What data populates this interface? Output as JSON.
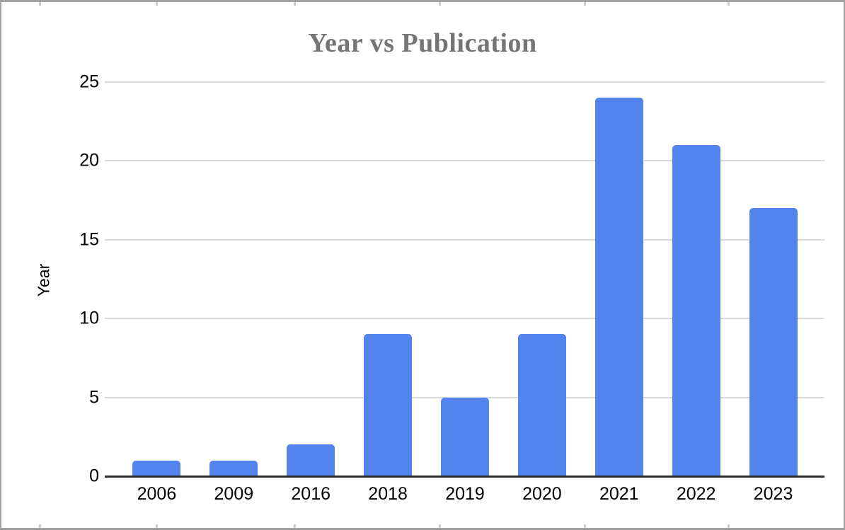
{
  "chart_data": {
    "type": "bar",
    "title": "Year vs Publication",
    "categories": [
      "2006",
      "2009",
      "2016",
      "2018",
      "2019",
      "2020",
      "2021",
      "2022",
      "2023"
    ],
    "values": [
      1,
      1,
      2,
      9,
      5,
      9,
      24,
      21,
      17
    ],
    "xlabel": "",
    "ylabel": "Year",
    "ylim": [
      0,
      25
    ],
    "ytick_step": 5,
    "ytick_labels": [
      "0",
      "5",
      "10",
      "15",
      "20",
      "25"
    ],
    "grid": true,
    "legend_position": "none",
    "bar_color": "#5383ec"
  },
  "colors": {
    "bar": "#5383ec",
    "title_text": "#757575",
    "tick_text": "#000000",
    "gridline": "#d9d9d9",
    "axis_line": "#2e2e2e",
    "frame_border": "#a2a2a2",
    "background": "#ffffff"
  }
}
